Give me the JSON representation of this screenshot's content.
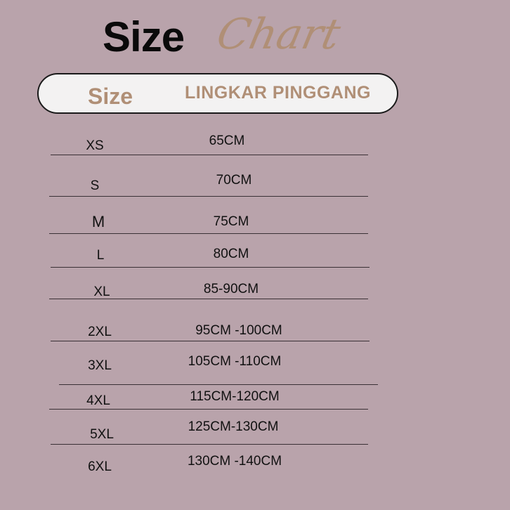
{
  "title": {
    "bold": "Size",
    "script": "Chart"
  },
  "header": {
    "size": "Size",
    "waist": "LINGKAR PINGGANG"
  },
  "colors": {
    "background": "#b9a3ab",
    "accent": "#b08f76",
    "header_bg": "#f3f2f2"
  },
  "rows": [
    {
      "size": "XS",
      "waist": "65CM"
    },
    {
      "size": "S",
      "waist": "70CM"
    },
    {
      "size": "M",
      "waist": "75CM"
    },
    {
      "size": "L",
      "waist": "80CM"
    },
    {
      "size": "XL",
      "waist": "85-90CM"
    },
    {
      "size": "2XL",
      "waist": "95CM -100CM"
    },
    {
      "size": "3XL",
      "waist": "105CM -110CM"
    },
    {
      "size": "4XL",
      "waist": "115CM-120CM"
    },
    {
      "size": "5XL",
      "waist": "125CM-130CM"
    },
    {
      "size": "6XL",
      "waist": "130CM -140CM"
    }
  ]
}
